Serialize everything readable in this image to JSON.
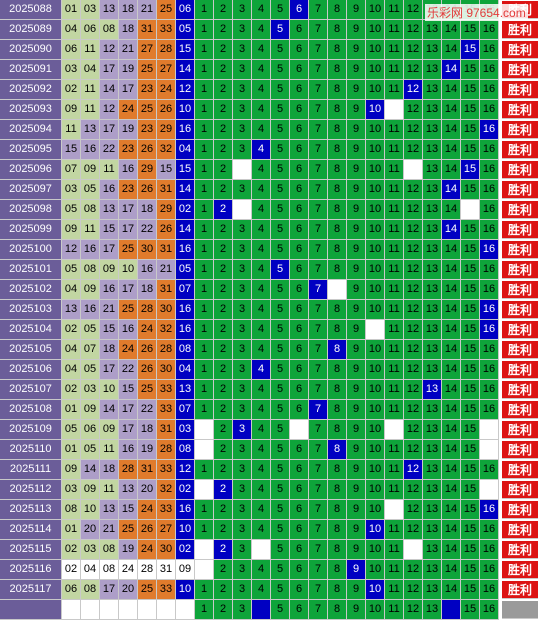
{
  "watermark": "乐彩网 97654.com",
  "favorite_label": "胜利",
  "colors": {
    "issue_bg": "#6b5d99",
    "red_zone_a": "#c2d6a2",
    "red_zone_b": "#ad9ec8",
    "red_zone_c": "#e07b2c",
    "blue_ball": "#0000c2",
    "grid_green": "#0ea43a",
    "favorite_red": "#dc1414"
  },
  "blue_columns": [
    "1",
    "2",
    "3",
    "4",
    "5",
    "6",
    "7",
    "8",
    "9",
    "10",
    "11",
    "12",
    "13",
    "14",
    "15",
    "16"
  ],
  "rows": [
    {
      "issue": "2025088",
      "reds": [
        "01",
        "03",
        "13",
        "18",
        "21",
        "25"
      ],
      "blue": "06",
      "gaps": []
    },
    {
      "issue": "2025089",
      "reds": [
        "04",
        "06",
        "08",
        "18",
        "31",
        "33"
      ],
      "blue": "05",
      "gaps": []
    },
    {
      "issue": "2025090",
      "reds": [
        "06",
        "11",
        "12",
        "21",
        "27",
        "28"
      ],
      "blue": "15",
      "gaps": []
    },
    {
      "issue": "2025091",
      "reds": [
        "03",
        "04",
        "17",
        "19",
        "25",
        "27"
      ],
      "blue": "14",
      "gaps": []
    },
    {
      "issue": "2025092",
      "reds": [
        "02",
        "11",
        "14",
        "17",
        "23",
        "24"
      ],
      "blue": "12",
      "gaps": []
    },
    {
      "issue": "2025093",
      "reds": [
        "09",
        "11",
        "12",
        "24",
        "25",
        "26"
      ],
      "blue": "10",
      "gaps": [
        11
      ]
    },
    {
      "issue": "2025094",
      "reds": [
        "11",
        "13",
        "17",
        "19",
        "23",
        "29"
      ],
      "blue": "16",
      "gaps": []
    },
    {
      "issue": "2025095",
      "reds": [
        "15",
        "16",
        "22",
        "23",
        "26",
        "32"
      ],
      "blue": "04",
      "gaps": []
    },
    {
      "issue": "2025096",
      "reds": [
        "07",
        "09",
        "11",
        "16",
        "29",
        "15"
      ],
      "blue": "15",
      "gaps": [
        3,
        12
      ]
    },
    {
      "issue": "2025097",
      "reds": [
        "03",
        "05",
        "16",
        "23",
        "26",
        "31"
      ],
      "blue": "14",
      "gaps": []
    },
    {
      "issue": "2025098",
      "reds": [
        "05",
        "08",
        "13",
        "17",
        "18",
        "29"
      ],
      "blue": "02",
      "gaps": [
        3,
        15
      ]
    },
    {
      "issue": "2025099",
      "reds": [
        "09",
        "11",
        "15",
        "17",
        "22",
        "26"
      ],
      "blue": "14",
      "gaps": []
    },
    {
      "issue": "2025100",
      "reds": [
        "12",
        "16",
        "17",
        "25",
        "30",
        "31"
      ],
      "blue": "16",
      "gaps": []
    },
    {
      "issue": "2025101",
      "reds": [
        "05",
        "08",
        "09",
        "10",
        "16",
        "21"
      ],
      "blue": "05",
      "gaps": []
    },
    {
      "issue": "2025102",
      "reds": [
        "04",
        "09",
        "16",
        "17",
        "18",
        "31"
      ],
      "blue": "07",
      "gaps": [
        8
      ]
    },
    {
      "issue": "2025103",
      "reds": [
        "13",
        "16",
        "21",
        "25",
        "28",
        "30"
      ],
      "blue": "16",
      "gaps": []
    },
    {
      "issue": "2025104",
      "reds": [
        "02",
        "05",
        "15",
        "16",
        "24",
        "32"
      ],
      "blue": "16",
      "gaps": [
        10
      ]
    },
    {
      "issue": "2025105",
      "reds": [
        "04",
        "07",
        "18",
        "24",
        "26",
        "28"
      ],
      "blue": "08",
      "gaps": []
    },
    {
      "issue": "2025106",
      "reds": [
        "04",
        "05",
        "17",
        "22",
        "26",
        "30"
      ],
      "blue": "04",
      "gaps": []
    },
    {
      "issue": "2025107",
      "reds": [
        "02",
        "03",
        "10",
        "15",
        "25",
        "33"
      ],
      "blue": "13",
      "gaps": []
    },
    {
      "issue": "2025108",
      "reds": [
        "01",
        "09",
        "14",
        "17",
        "22",
        "33"
      ],
      "blue": "07",
      "gaps": []
    },
    {
      "issue": "2025109",
      "reds": [
        "05",
        "06",
        "09",
        "17",
        "18",
        "31"
      ],
      "blue": "03",
      "gaps": [
        1,
        6,
        11,
        16
      ]
    },
    {
      "issue": "2025110",
      "reds": [
        "01",
        "05",
        "11",
        "16",
        "19",
        "28"
      ],
      "blue": "08",
      "gaps": [
        1,
        16
      ]
    },
    {
      "issue": "2025111",
      "reds": [
        "09",
        "14",
        "18",
        "28",
        "31",
        "33"
      ],
      "blue": "12",
      "gaps": []
    },
    {
      "issue": "2025112",
      "reds": [
        "03",
        "09",
        "11",
        "13",
        "20",
        "32"
      ],
      "blue": "02",
      "gaps": [
        1,
        16
      ]
    },
    {
      "issue": "2025113",
      "reds": [
        "08",
        "10",
        "13",
        "15",
        "24",
        "33"
      ],
      "blue": "16",
      "gaps": [
        11
      ]
    },
    {
      "issue": "2025114",
      "reds": [
        "01",
        "20",
        "21",
        "25",
        "26",
        "27"
      ],
      "blue": "10",
      "gaps": []
    },
    {
      "issue": "2025115",
      "reds": [
        "02",
        "03",
        "08",
        "19",
        "24",
        "30"
      ],
      "blue": "02",
      "gaps": [
        1,
        4,
        12
      ]
    },
    {
      "issue": "2025116",
      "reds": [
        "02",
        "04",
        "08",
        "24",
        "28",
        "31"
      ],
      "blue": "09",
      "gaps": [
        1
      ]
    },
    {
      "issue": "2025117",
      "reds": [
        "06",
        "08",
        "17",
        "20",
        "25",
        "33"
      ],
      "blue": "10",
      "gaps": []
    },
    {
      "issue": "",
      "reds": [
        "",
        "",
        "",
        "",
        "",
        ""
      ],
      "blue": "",
      "gaps": [
        4,
        14
      ],
      "blank": true
    }
  ]
}
